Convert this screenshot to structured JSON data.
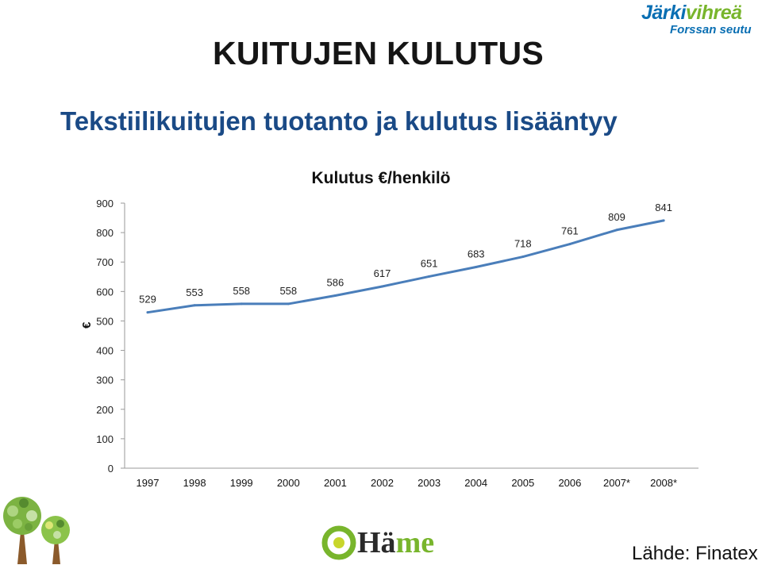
{
  "logo": {
    "part1": "Järki",
    "part2": "vihreä",
    "sub": "Forssan seutu"
  },
  "title": "KUITUJEN KULUTUS",
  "subtitle": "Tekstiilikuitujen tuotanto ja kulutus lisääntyy",
  "source": "Lähde: Finatex",
  "hame_logo": {
    "word_a": "Hä",
    "word_b": "me"
  },
  "colors": {
    "line": "#4a7eba",
    "subtitle": "#1a4a86",
    "logo_blue": "#0a6fb3",
    "logo_green": "#78b52c"
  },
  "chart_data": {
    "type": "line",
    "title": "Kulutus €/henkilö",
    "ylabel": "€",
    "xlabel": "",
    "categories": [
      "1997",
      "1998",
      "1999",
      "2000",
      "2001",
      "2002",
      "2003",
      "2004",
      "2005",
      "2006",
      "2007*",
      "2008*"
    ],
    "values": [
      529,
      553,
      558,
      558,
      586,
      617,
      651,
      683,
      718,
      761,
      809,
      841
    ],
    "ylim": [
      0,
      900
    ],
    "yticks": [
      0,
      100,
      200,
      300,
      400,
      500,
      600,
      700,
      800,
      900
    ],
    "grid": false,
    "data_labels": true
  }
}
